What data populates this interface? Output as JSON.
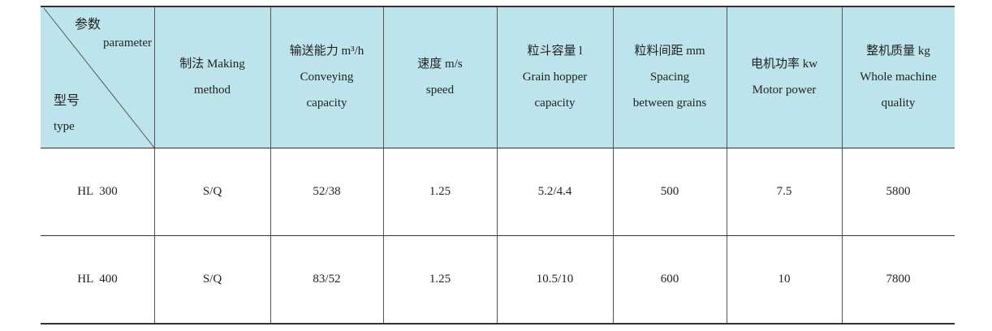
{
  "table": {
    "corner": {
      "top_cn": "参数",
      "top_en": "parameter",
      "bottom_cn": "型号",
      "bottom_en": "type"
    },
    "headers": [
      [
        "制法 Making",
        "method"
      ],
      [
        "输送能力 m³/h",
        "Conveying",
        "capacity"
      ],
      [
        "速度 m/s",
        "speed"
      ],
      [
        "粒斗容量 l",
        "Grain hopper",
        "capacity"
      ],
      [
        "粒料间距 mm",
        "Spacing",
        "between grains"
      ],
      [
        "电机功率 kw",
        "Motor power"
      ],
      [
        "整机质量 kg",
        "Whole machine",
        "quality"
      ]
    ],
    "rows": [
      [
        "HL  300",
        "S/Q",
        "52/38",
        "1.25",
        "5.2/4.4",
        "500",
        "7.5",
        "5800"
      ],
      [
        "HL  400",
        "S/Q",
        "83/52",
        "1.25",
        "10.5/10",
        "600",
        "10",
        "7800"
      ]
    ]
  }
}
